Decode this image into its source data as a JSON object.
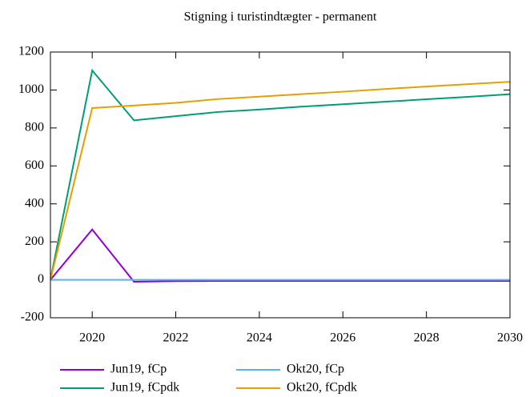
{
  "chart_data": {
    "type": "line",
    "title": "Stigning i turistindtægter - permanent",
    "x": [
      2019,
      2020,
      2021,
      2022,
      2023,
      2024,
      2025,
      2026,
      2027,
      2028,
      2029,
      2030
    ],
    "series": [
      {
        "name": "Jun19, fCp",
        "color": "#9400d3",
        "values": [
          0,
          265,
          -10,
          -7,
          -6,
          -6,
          -6,
          -6,
          -6,
          -6,
          -6,
          -6
        ]
      },
      {
        "name": "Okt20, fCp",
        "color": "#56b4e9",
        "values": [
          0,
          0,
          0,
          0,
          0,
          0,
          0,
          0,
          0,
          0,
          0,
          0
        ]
      },
      {
        "name": "Jun19, fCpdk",
        "color": "#009e73",
        "values": [
          0,
          1103,
          840,
          862,
          884,
          897,
          912,
          925,
          938,
          951,
          964,
          978
        ]
      },
      {
        "name": "Okt20, fCpdk",
        "color": "#e69f00",
        "values": [
          0,
          905,
          918,
          932,
          952,
          965,
          978,
          991,
          1005,
          1018,
          1031,
          1043
        ]
      }
    ],
    "xlim": [
      2019,
      2030
    ],
    "xticks": [
      2020,
      2022,
      2024,
      2026,
      2028,
      2030
    ],
    "ylim": [
      -200,
      1200
    ],
    "yticks": [
      -200,
      0,
      200,
      400,
      600,
      800,
      1000,
      1200
    ],
    "zeroline": true,
    "legend": "bottom"
  }
}
